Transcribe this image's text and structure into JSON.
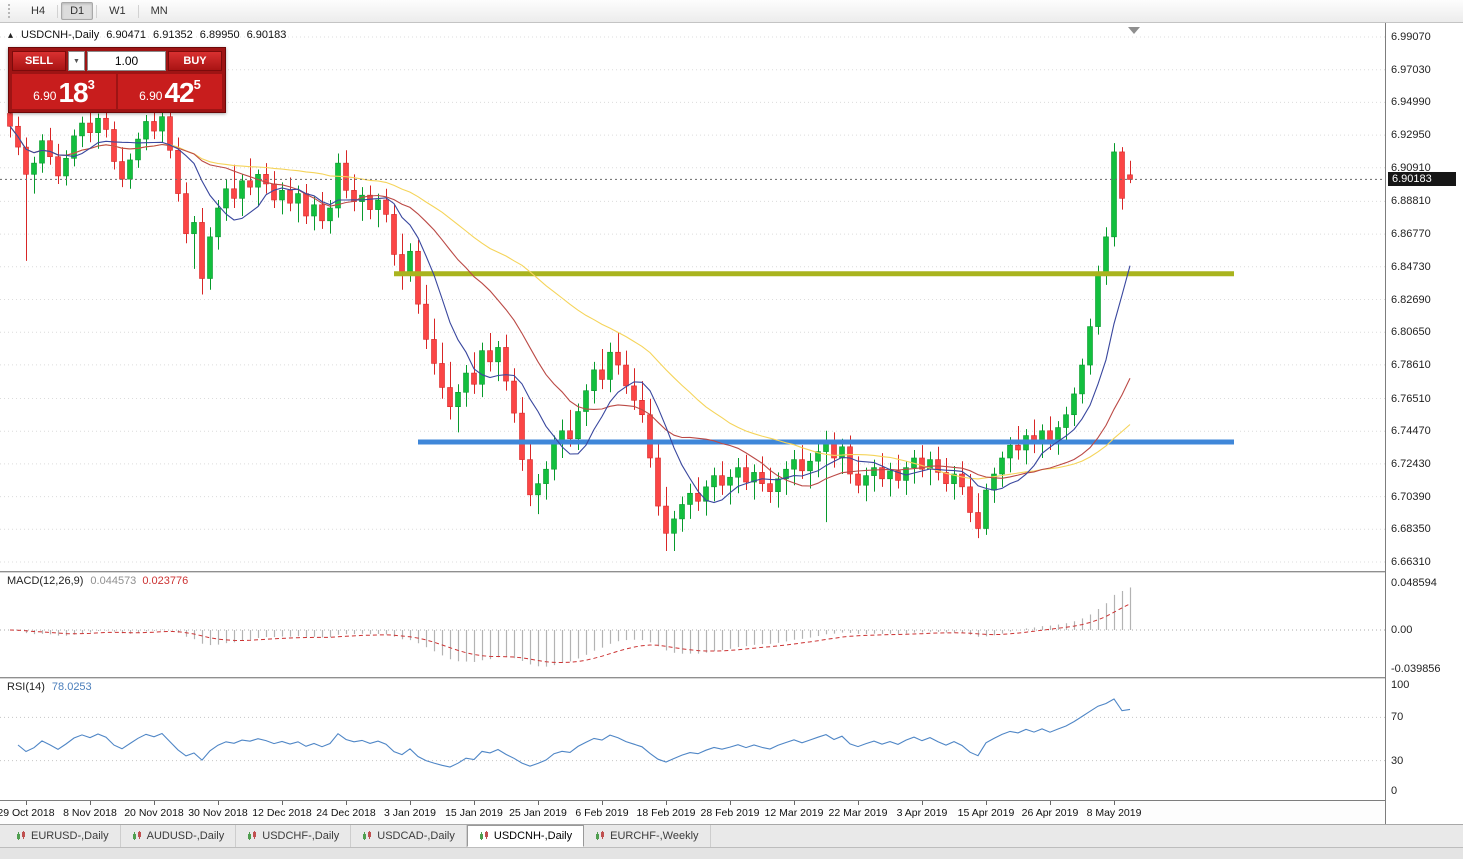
{
  "toolbar": {
    "timeframes": [
      {
        "label": "H4",
        "active": false
      },
      {
        "label": "D1",
        "active": true
      },
      {
        "label": "W1",
        "active": false
      },
      {
        "label": "MN",
        "active": false
      }
    ]
  },
  "chart_header": {
    "symbol_period": "USDCNH-,Daily",
    "open": "6.90471",
    "high": "6.91352",
    "low": "6.89950",
    "close": "6.90183"
  },
  "trade_panel": {
    "sell_label": "SELL",
    "buy_label": "BUY",
    "volume_value": "1.00",
    "sell_price": {
      "prefix": "6.90",
      "big": "18",
      "sup": "3"
    },
    "buy_price": {
      "prefix": "6.90",
      "big": "42",
      "sup": "5"
    }
  },
  "price_axis": {
    "labels": [
      "6.99070",
      "6.97030",
      "6.94990",
      "6.92950",
      "6.90910",
      "6.88810",
      "6.86770",
      "6.84730",
      "6.82690",
      "6.80650",
      "6.78610",
      "6.76510",
      "6.74470",
      "6.72430",
      "6.70390",
      "6.68350",
      "6.66310"
    ],
    "current_price": "6.90183"
  },
  "macd_panel": {
    "title": "MACD(12,26,9)",
    "main_value": "0.044573",
    "signal_value": "0.023776",
    "axis_labels": [
      "0.048594",
      "0.00",
      "-0.039856"
    ],
    "axis_values": [
      0.048594,
      0.0,
      -0.039856
    ]
  },
  "rsi_panel": {
    "title": "RSI(14)",
    "value": "78.0253",
    "axis_labels": [
      "100",
      "70",
      "30",
      "0"
    ],
    "axis_values": [
      100,
      70,
      30,
      0
    ],
    "levels": [
      70,
      30
    ]
  },
  "date_axis": {
    "labels": [
      "29 Oct 2018",
      "8 Nov 2018",
      "20 Nov 2018",
      "30 Nov 2018",
      "12 Dec 2018",
      "24 Dec 2018",
      "3 Jan 2019",
      "15 Jan 2019",
      "25 Jan 2019",
      "6 Feb 2019",
      "18 Feb 2019",
      "28 Feb 2019",
      "12 Mar 2019",
      "22 Mar 2019",
      "3 Apr 2019",
      "15 Apr 2019",
      "26 Apr 2019",
      "8 May 2019"
    ],
    "first_candle_index": 2,
    "step": 8
  },
  "tabs": {
    "items": [
      {
        "label": "EURUSD-,Daily",
        "active": false
      },
      {
        "label": "AUDUSD-,Daily",
        "active": false
      },
      {
        "label": "USDCHF-,Daily",
        "active": false
      },
      {
        "label": "USDCAD-,Daily",
        "active": false
      },
      {
        "label": "USDCNH-,Daily",
        "active": true
      },
      {
        "label": "EURCHF-,Weekly",
        "active": false
      }
    ]
  },
  "colors": {
    "up": "#12bf3e",
    "up_border": "#079a2c",
    "down": "#fb4545",
    "down_border": "#d82626",
    "ma_fast": "#39479e",
    "ma_mid": "#bb4a46",
    "ma_slow": "#f5d45a",
    "support": "#3f87d9",
    "resistance": "#a9b41e",
    "macd_hist": "#b3b3b3",
    "macd_signal": "#cc3333",
    "rsi_line": "#4f86c6",
    "grid": "#dcdcdc",
    "price_line": "#6a6a6a"
  },
  "chart_data": {
    "type": "candlestick",
    "symbol": "USDCNH",
    "timeframe": "Daily",
    "price_range": {
      "top": 6.9907,
      "bottom": 6.6631
    },
    "current_price": 6.90183,
    "overlays": [
      {
        "name": "horizontal-resistance-line",
        "price": 6.843,
        "from_index": 48,
        "to_index": 153,
        "color_key": "resistance"
      },
      {
        "name": "horizontal-support-line",
        "price": 6.738,
        "from_index": 51,
        "to_index": 153,
        "color_key": "support"
      }
    ],
    "moving_averages": [
      {
        "period": 8,
        "color_key": "ma_fast"
      },
      {
        "period": 20,
        "color_key": "ma_mid"
      },
      {
        "period": 40,
        "color_key": "ma_slow"
      }
    ],
    "macd_settings": {
      "fast": 12,
      "slow": 26,
      "signal": 9,
      "range_top": 0.048594,
      "range_bottom": -0.039856
    },
    "rsi_settings": {
      "period": 14,
      "levels": [
        70,
        30
      ]
    },
    "candles": [
      [
        6.943,
        6.952,
        6.928,
        6.935
      ],
      [
        6.935,
        6.941,
        6.917,
        6.922
      ],
      [
        6.922,
        6.928,
        6.851,
        6.905
      ],
      [
        6.905,
        6.916,
        6.893,
        6.912
      ],
      [
        6.912,
        6.93,
        6.906,
        6.926
      ],
      [
        6.926,
        6.934,
        6.911,
        6.916
      ],
      [
        6.916,
        6.924,
        6.899,
        6.904
      ],
      [
        6.904,
        6.92,
        6.898,
        6.915
      ],
      [
        6.915,
        6.933,
        6.91,
        6.929
      ],
      [
        6.929,
        6.941,
        6.922,
        6.937
      ],
      [
        6.937,
        6.944,
        6.925,
        6.931
      ],
      [
        6.931,
        6.943,
        6.921,
        6.94
      ],
      [
        6.94,
        6.946,
        6.928,
        6.933
      ],
      [
        6.933,
        6.938,
        6.908,
        6.913
      ],
      [
        6.913,
        6.922,
        6.897,
        6.902
      ],
      [
        6.902,
        6.918,
        6.896,
        6.914
      ],
      [
        6.914,
        6.931,
        6.909,
        6.927
      ],
      [
        6.927,
        6.942,
        6.92,
        6.938
      ],
      [
        6.938,
        6.9465,
        6.927,
        6.932
      ],
      [
        6.932,
        6.945,
        6.925,
        6.941
      ],
      [
        6.941,
        6.9455,
        6.915,
        6.92
      ],
      [
        6.92,
        6.928,
        6.888,
        6.893
      ],
      [
        6.893,
        6.9,
        6.862,
        6.868
      ],
      [
        6.868,
        6.879,
        6.846,
        6.875
      ],
      [
        6.875,
        6.884,
        6.83,
        6.84
      ],
      [
        6.84,
        6.872,
        6.833,
        6.866
      ],
      [
        6.866,
        6.889,
        6.858,
        6.884
      ],
      [
        6.884,
        6.902,
        6.876,
        6.896
      ],
      [
        6.896,
        6.911,
        6.884,
        6.89
      ],
      [
        6.89,
        6.905,
        6.879,
        6.901
      ],
      [
        6.901,
        6.915,
        6.892,
        6.897
      ],
      [
        6.897,
        6.908,
        6.885,
        6.905
      ],
      [
        6.905,
        6.912,
        6.893,
        6.899
      ],
      [
        6.899,
        6.907,
        6.884,
        6.889
      ],
      [
        6.889,
        6.9,
        6.88,
        6.895
      ],
      [
        6.895,
        6.903,
        6.882,
        6.887
      ],
      [
        6.887,
        6.898,
        6.875,
        6.893
      ],
      [
        6.893,
        6.899,
        6.874,
        6.879
      ],
      [
        6.879,
        6.891,
        6.87,
        6.886
      ],
      [
        6.886,
        6.894,
        6.871,
        6.876
      ],
      [
        6.876,
        6.889,
        6.868,
        6.884
      ],
      [
        6.884,
        6.918,
        6.878,
        6.912
      ],
      [
        6.912,
        6.92,
        6.89,
        6.895
      ],
      [
        6.895,
        6.905,
        6.882,
        6.888
      ],
      [
        6.888,
        6.897,
        6.876,
        6.892
      ],
      [
        6.892,
        6.898,
        6.877,
        6.883
      ],
      [
        6.883,
        6.893,
        6.872,
        6.889
      ],
      [
        6.889,
        6.896,
        6.875,
        6.88
      ],
      [
        6.88,
        6.886,
        6.848,
        6.855
      ],
      [
        6.855,
        6.868,
        6.833,
        6.843
      ],
      [
        6.843,
        6.862,
        6.838,
        6.857
      ],
      [
        6.857,
        6.864,
        6.818,
        6.824
      ],
      [
        6.824,
        6.836,
        6.796,
        6.802
      ],
      [
        6.802,
        6.815,
        6.78,
        6.787
      ],
      [
        6.787,
        6.8,
        6.765,
        6.772
      ],
      [
        6.772,
        6.788,
        6.752,
        6.76
      ],
      [
        6.76,
        6.774,
        6.744,
        6.769
      ],
      [
        6.769,
        6.786,
        6.76,
        6.781
      ],
      [
        6.781,
        6.794,
        6.768,
        6.774
      ],
      [
        6.774,
        6.8,
        6.766,
        6.795
      ],
      [
        6.795,
        6.806,
        6.782,
        6.788
      ],
      [
        6.788,
        6.801,
        6.776,
        6.797
      ],
      [
        6.797,
        6.805,
        6.77,
        6.776
      ],
      [
        6.776,
        6.784,
        6.75,
        6.756
      ],
      [
        6.756,
        6.766,
        6.72,
        6.727
      ],
      [
        6.727,
        6.738,
        6.698,
        6.705
      ],
      [
        6.705,
        6.718,
        6.693,
        6.712
      ],
      [
        6.712,
        6.726,
        6.702,
        6.721
      ],
      [
        6.721,
        6.742,
        6.714,
        6.738
      ],
      [
        6.738,
        6.752,
        6.728,
        6.745
      ],
      [
        6.745,
        6.758,
        6.735,
        6.74
      ],
      [
        6.74,
        6.762,
        6.733,
        6.757
      ],
      [
        6.757,
        6.774,
        6.748,
        6.77
      ],
      [
        6.77,
        6.788,
        6.762,
        6.783
      ],
      [
        6.783,
        6.796,
        6.771,
        6.777
      ],
      [
        6.777,
        6.8,
        6.769,
        6.794
      ],
      [
        6.794,
        6.806,
        6.78,
        6.786
      ],
      [
        6.786,
        6.795,
        6.768,
        6.773
      ],
      [
        6.773,
        6.784,
        6.758,
        6.764
      ],
      [
        6.764,
        6.776,
        6.75,
        6.755
      ],
      [
        6.755,
        6.765,
        6.722,
        6.728
      ],
      [
        6.728,
        6.738,
        6.692,
        6.698
      ],
      [
        6.698,
        6.71,
        6.67,
        6.681
      ],
      [
        6.681,
        6.695,
        6.67,
        6.69
      ],
      [
        6.69,
        6.704,
        6.682,
        6.699
      ],
      [
        6.699,
        6.712,
        6.69,
        6.706
      ],
      [
        6.706,
        6.716,
        6.695,
        6.701
      ],
      [
        6.701,
        6.714,
        6.692,
        6.71
      ],
      [
        6.71,
        6.722,
        6.701,
        6.717
      ],
      [
        6.717,
        6.726,
        6.705,
        6.711
      ],
      [
        6.711,
        6.721,
        6.699,
        6.716
      ],
      [
        6.716,
        6.728,
        6.706,
        6.722
      ],
      [
        6.722,
        6.73,
        6.708,
        6.713
      ],
      [
        6.713,
        6.724,
        6.702,
        6.719
      ],
      [
        6.719,
        6.729,
        6.707,
        6.712
      ],
      [
        6.712,
        6.722,
        6.7,
        6.707
      ],
      [
        6.707,
        6.719,
        6.697,
        6.715
      ],
      [
        6.715,
        6.726,
        6.705,
        6.721
      ],
      [
        6.721,
        6.733,
        6.711,
        6.727
      ],
      [
        6.727,
        6.736,
        6.715,
        6.72
      ],
      [
        6.72,
        6.731,
        6.709,
        6.726
      ],
      [
        6.726,
        6.738,
        6.716,
        6.732
      ],
      [
        6.732,
        6.745,
        6.688,
        6.738
      ],
      [
        6.738,
        6.744,
        6.722,
        6.728
      ],
      [
        6.728,
        6.74,
        6.718,
        6.735
      ],
      [
        6.735,
        6.742,
        6.712,
        6.718
      ],
      [
        6.718,
        6.729,
        6.706,
        6.711
      ],
      [
        6.711,
        6.722,
        6.701,
        6.717
      ],
      [
        6.717,
        6.727,
        6.707,
        6.722
      ],
      [
        6.722,
        6.731,
        6.71,
        6.715
      ],
      [
        6.715,
        6.725,
        6.704,
        6.72
      ],
      [
        6.72,
        6.73,
        6.709,
        6.714
      ],
      [
        6.714,
        6.726,
        6.705,
        6.722
      ],
      [
        6.722,
        6.733,
        6.712,
        6.728
      ],
      [
        6.728,
        6.736,
        6.716,
        6.721
      ],
      [
        6.721,
        6.732,
        6.711,
        6.727
      ],
      [
        6.727,
        6.735,
        6.714,
        6.719
      ],
      [
        6.719,
        6.728,
        6.707,
        6.712
      ],
      [
        6.712,
        6.723,
        6.702,
        6.718
      ],
      [
        6.718,
        6.726,
        6.705,
        6.71
      ],
      [
        6.71,
        6.718,
        6.688,
        6.694
      ],
      [
        6.694,
        6.706,
        6.678,
        6.684
      ],
      [
        6.684,
        6.712,
        6.68,
        6.708
      ],
      [
        6.708,
        6.722,
        6.7,
        6.718
      ],
      [
        6.718,
        6.732,
        6.71,
        6.728
      ],
      [
        6.728,
        6.741,
        6.719,
        6.736
      ],
      [
        6.736,
        6.748,
        6.727,
        6.733
      ],
      [
        6.733,
        6.746,
        6.724,
        6.742
      ],
      [
        6.742,
        6.752,
        6.731,
        6.737
      ],
      [
        6.737,
        6.749,
        6.728,
        6.745
      ],
      [
        6.745,
        6.754,
        6.733,
        6.739
      ],
      [
        6.739,
        6.751,
        6.73,
        6.747
      ],
      [
        6.747,
        6.76,
        6.738,
        6.755
      ],
      [
        6.755,
        6.772,
        6.748,
        6.768
      ],
      [
        6.768,
        6.79,
        6.762,
        6.786
      ],
      [
        6.786,
        6.815,
        6.78,
        6.81
      ],
      [
        6.81,
        6.848,
        6.805,
        6.843
      ],
      [
        6.843,
        6.872,
        6.836,
        6.866
      ],
      [
        6.866,
        6.9245,
        6.86,
        6.919
      ],
      [
        6.919,
        6.922,
        6.883,
        6.89
      ],
      [
        6.9047,
        6.9135,
        6.8995,
        6.9018
      ]
    ]
  }
}
